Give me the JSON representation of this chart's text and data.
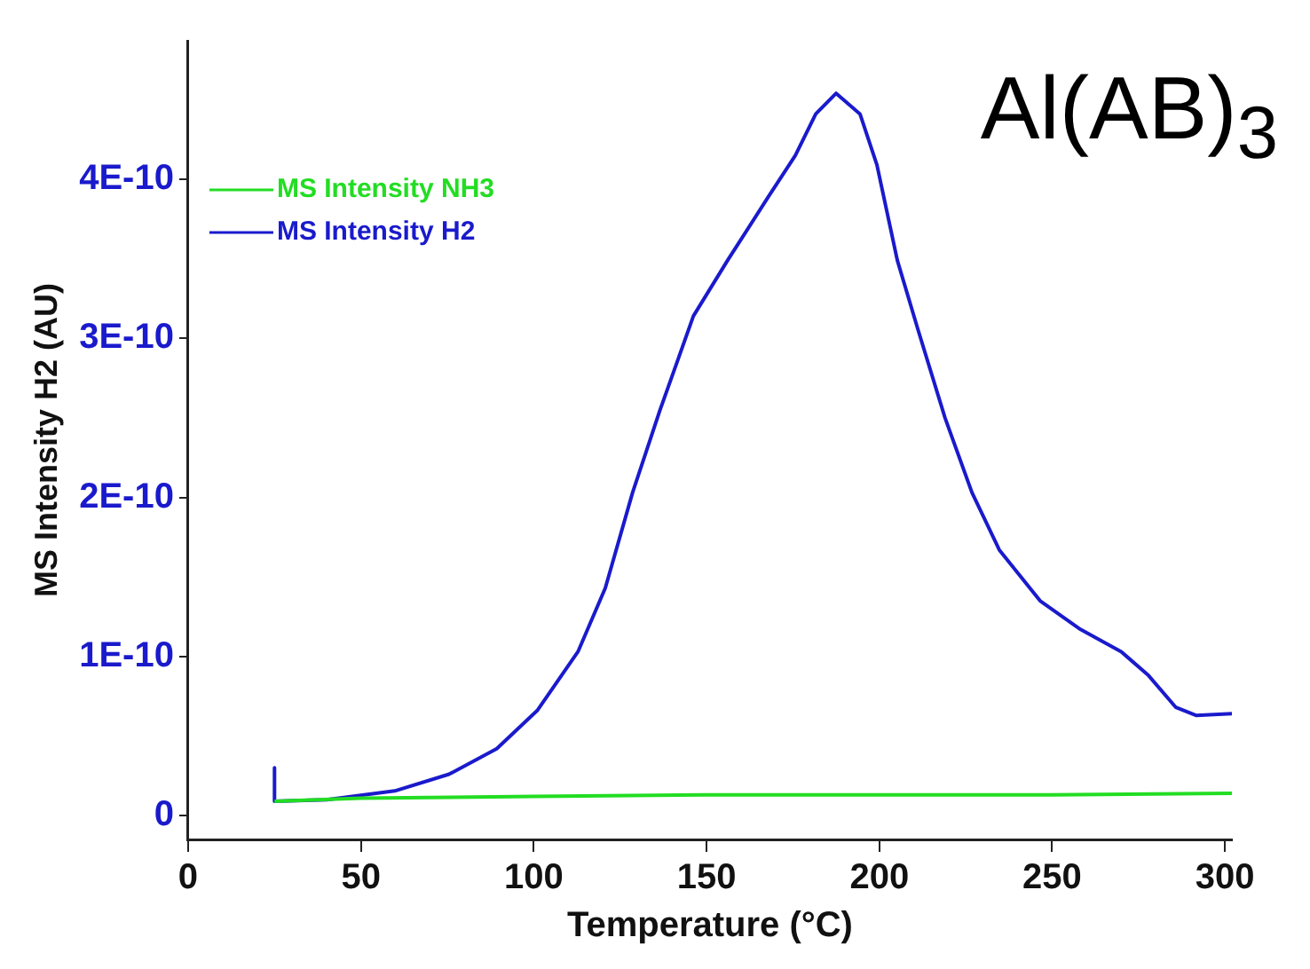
{
  "chart_data": {
    "type": "line",
    "title": "Al(AB)$_{3}$",
    "xlabel": "Temperature (°C)",
    "ylabel": "MS Intensity H2 (AU)",
    "xlim": [
      0,
      302
    ],
    "xticks": [
      0,
      50,
      100,
      150,
      200,
      250,
      300
    ],
    "ylim": [
      -1.5e-11,
      4.87e-10
    ],
    "yticks": [
      0,
      {
        "value": 1e-10,
        "label": "1E-10"
      },
      {
        "value": 2e-10,
        "label": "2E-10"
      },
      {
        "value": 3e-10,
        "label": "3E-10"
      },
      {
        "value": 4e-10,
        "label": "4E-10"
      }
    ],
    "grid": false,
    "legend": "top left",
    "marker": "none",
    "line_style": "solid",
    "series": [
      {
        "name": "MS Intensity NH3",
        "color": "#22dd22",
        "x": [
          25,
          50,
          100,
          150,
          200,
          250,
          302
        ],
        "values": [
          9e-12,
          1.1e-11,
          1.2e-11,
          1.3e-11,
          1.3e-11,
          1.3e-11,
          1.4e-11
        ]
      },
      {
        "name": "MS Intensity H2",
        "color": "#1a1acc",
        "x": [
          25,
          25,
          40.1,
          59.8,
          75.5,
          89.3,
          101,
          112.8,
          120.7,
          128.6,
          136.4,
          146.2,
          156.1,
          167.9,
          175.7,
          181.6,
          187.5,
          194.4,
          199.3,
          205.2,
          211.1,
          219,
          226.8,
          234.7,
          246.5,
          258.2,
          270,
          277.9,
          285.8,
          291.6,
          302
        ],
        "values": [
          3e-11,
          9e-12,
          1e-11,
          1.55e-11,
          2.6e-11,
          4.2e-11,
          6.6e-11,
          1.03e-10,
          1.43e-10,
          2.03e-10,
          2.54e-10,
          3.14e-10,
          3.49e-10,
          3.89e-10,
          4.15e-10,
          4.41e-10,
          4.54e-10,
          4.41e-10,
          4.09e-10,
          3.49e-10,
          3.06e-10,
          2.5e-10,
          2.03e-10,
          1.67e-10,
          1.35e-10,
          1.17e-10,
          1.03e-10,
          8.8e-11,
          6.8e-11,
          6.3e-11,
          6.4e-11
        ]
      }
    ]
  }
}
